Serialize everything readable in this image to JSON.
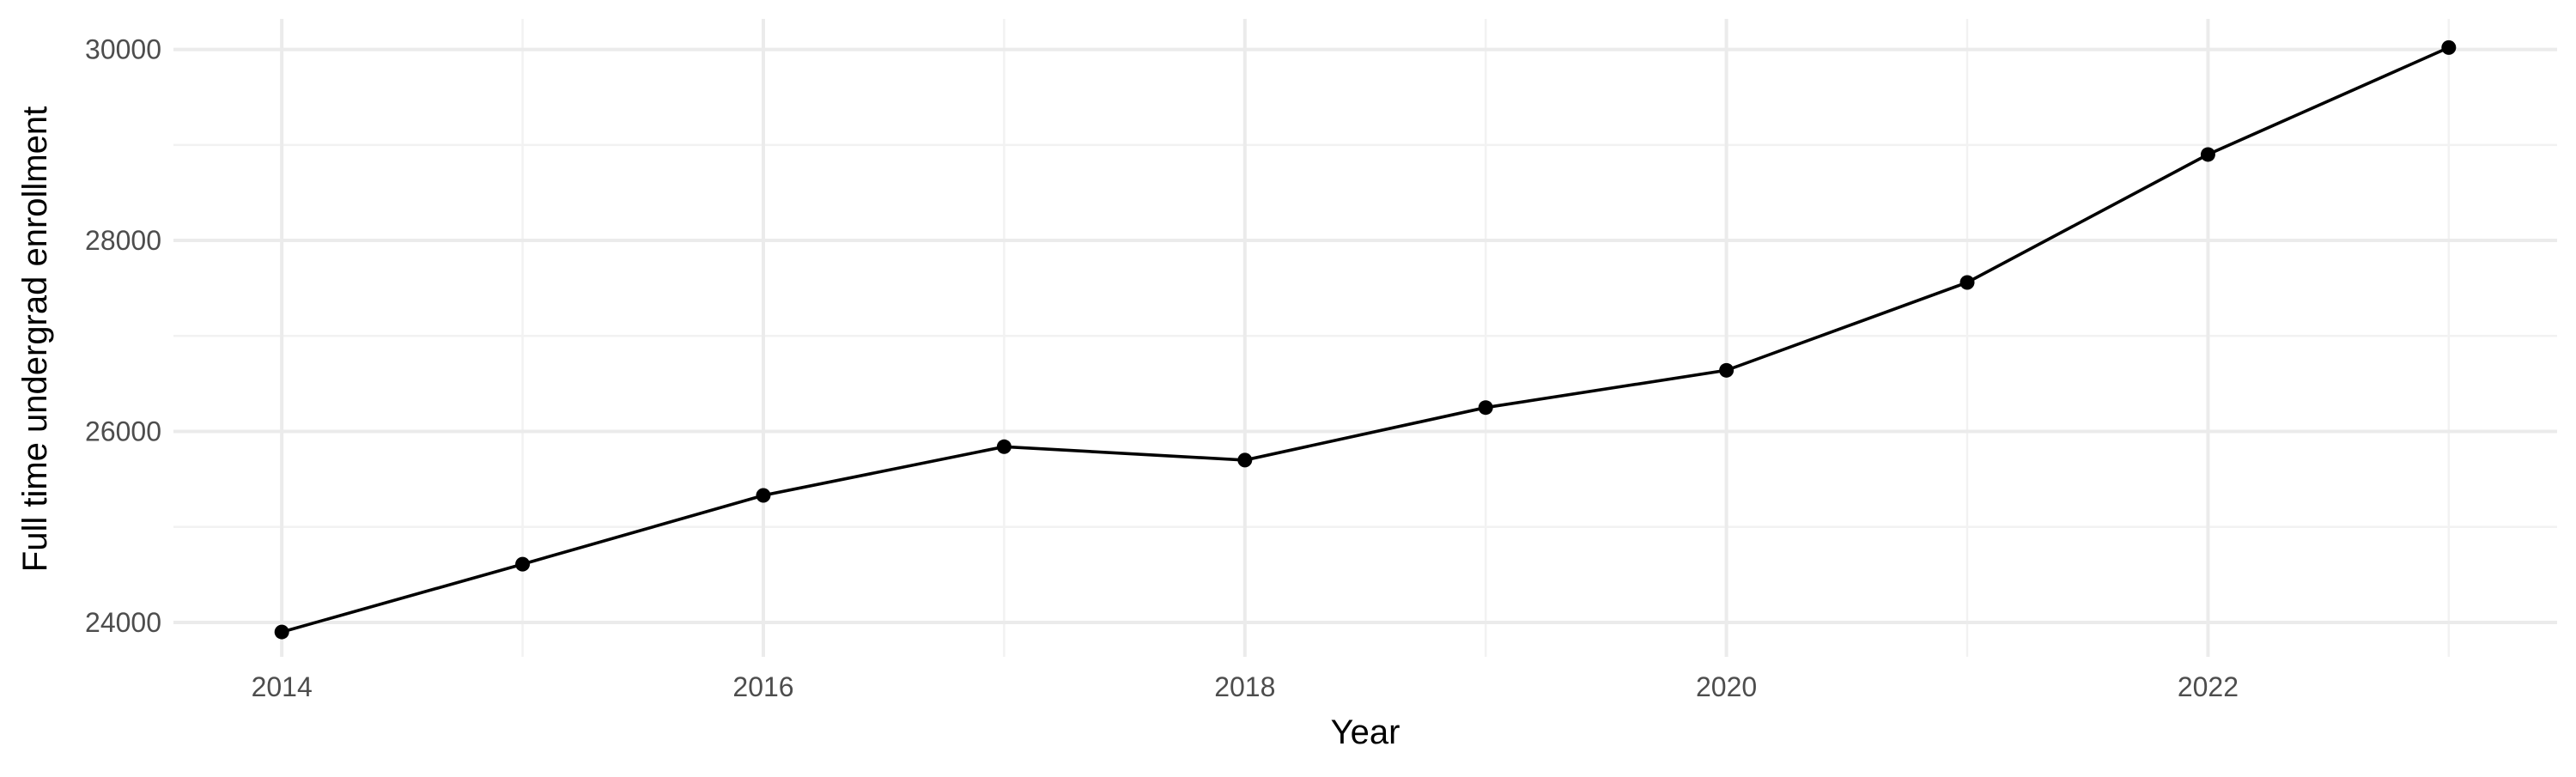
{
  "chart_data": {
    "type": "line",
    "title": "",
    "xlabel": "Year",
    "ylabel": "Full time undergrad enrollment",
    "x": [
      2014,
      2015,
      2016,
      2017,
      2018,
      2019,
      2020,
      2021,
      2022,
      2023
    ],
    "series": [
      {
        "values": [
          23900,
          24610,
          25330,
          25840,
          25700,
          26250,
          26640,
          27560,
          28900,
          30020
        ]
      }
    ],
    "xlim": [
      2013.55,
      2023.45
    ],
    "ylim": [
      23640,
      30320
    ],
    "x_ticks": [
      2014,
      2016,
      2018,
      2020,
      2022
    ],
    "x_tick_labels": [
      "2014",
      "2016",
      "2018",
      "2020",
      "2022"
    ],
    "y_ticks": [
      24000,
      26000,
      28000,
      30000
    ],
    "y_tick_labels": [
      "24000",
      "26000",
      "28000",
      "30000"
    ],
    "grid": true,
    "legend": "none",
    "colors": {
      "line": "#000000",
      "point": "#000000",
      "grid_major": "#ebebeb",
      "grid_minor": "#f2f2f2",
      "tick_text": "#4d4d4d",
      "background": "#ffffff"
    }
  }
}
